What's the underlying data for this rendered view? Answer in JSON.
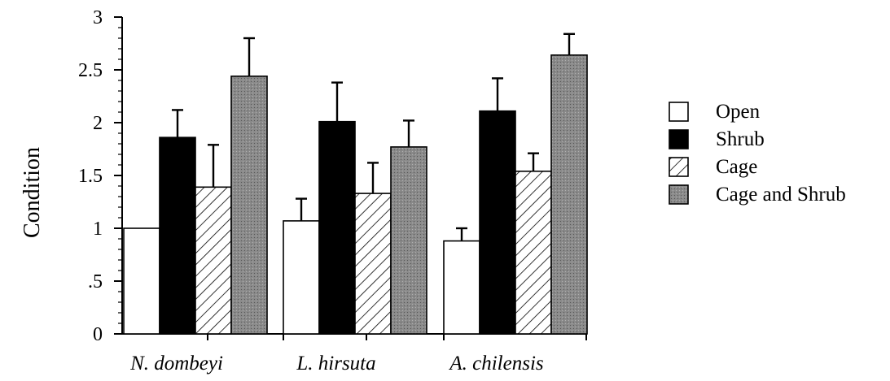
{
  "chart_data": {
    "type": "bar",
    "categories": [
      "N. dombeyi",
      "L. hirsuta",
      "A. chilensis"
    ],
    "ylabel": "Condition",
    "ylim": [
      0,
      3
    ],
    "yticks": [
      0,
      0.5,
      1,
      1.5,
      2,
      2.5,
      3
    ],
    "ytick_labels": [
      "0",
      ".5",
      "1",
      "1.5",
      "2",
      "2.5",
      "3"
    ],
    "legend_position": "right",
    "grid": false,
    "series": [
      {
        "name": "Open",
        "values": [
          1.0,
          1.07,
          0.88
        ],
        "errors": [
          0,
          0.21,
          0.12
        ],
        "fill": "open"
      },
      {
        "name": "Shrub",
        "values": [
          1.86,
          2.01,
          2.11
        ],
        "errors": [
          0.26,
          0.37,
          0.31
        ],
        "fill": "solid"
      },
      {
        "name": "Cage",
        "values": [
          1.39,
          1.33,
          1.54
        ],
        "errors": [
          0.4,
          0.29,
          0.17
        ],
        "fill": "hatch"
      },
      {
        "name": "Cage and Shrub",
        "values": [
          2.44,
          1.77,
          2.64
        ],
        "errors": [
          0.36,
          0.25,
          0.2
        ],
        "fill": "gray"
      }
    ]
  },
  "colors": {
    "open": "#ffffff",
    "solid": "#000000",
    "gray": "#8a8a8a",
    "stroke": "#000000"
  }
}
